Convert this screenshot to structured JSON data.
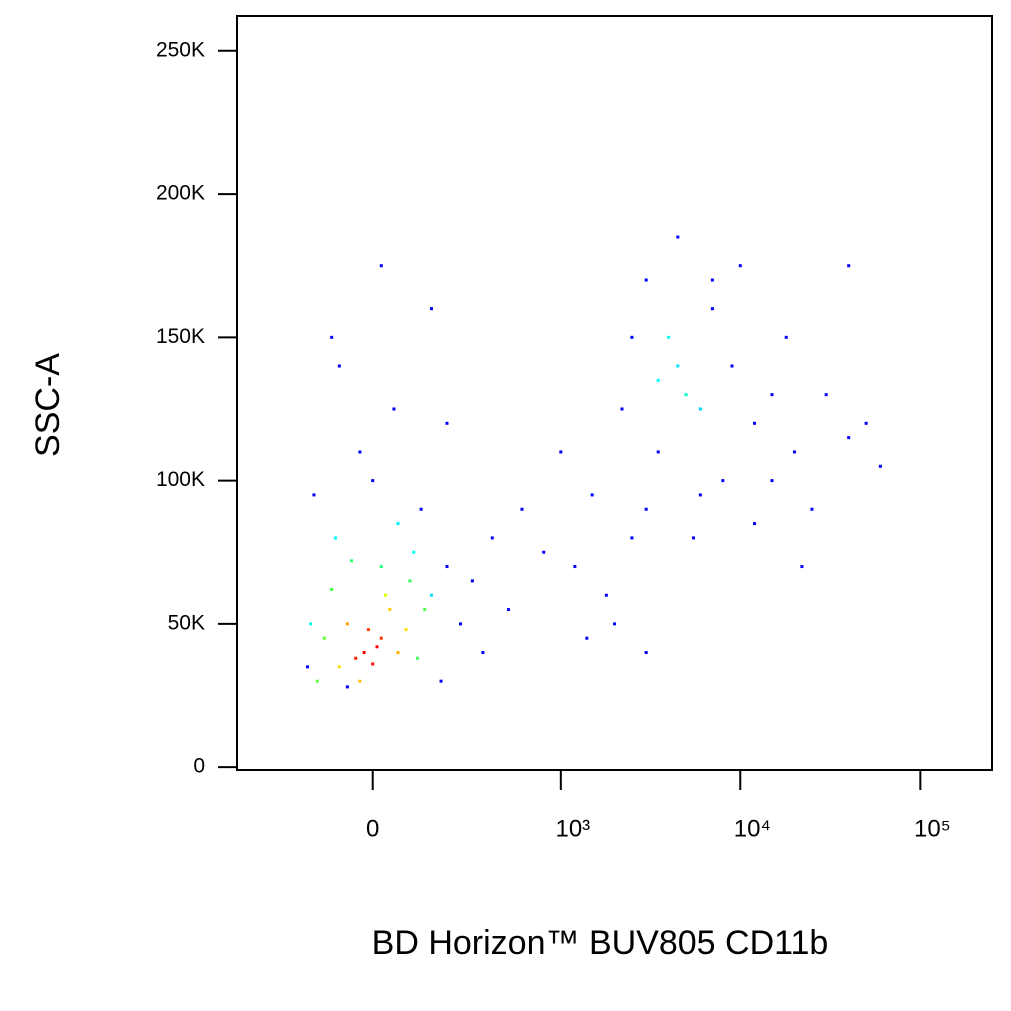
{
  "chart_data": {
    "type": "scatter",
    "x_label": "BD Horizon™ BUV805 CD11b",
    "y_label": "SSC-A",
    "xscale": "biexponential",
    "xlim": [
      -500,
      250000
    ],
    "xticks": [
      0,
      {
        "value": 1000,
        "label": "10³"
      },
      {
        "value": 10000,
        "label": "10⁴"
      },
      {
        "value": 100000,
        "label": "10⁵"
      }
    ],
    "ylim": [
      -1000,
      262144
    ],
    "yticks": [
      0,
      {
        "value": 50000,
        "label": "50K"
      },
      {
        "value": 100000,
        "label": "100K"
      },
      {
        "value": 150000,
        "label": "150K"
      },
      {
        "value": 200000,
        "label": "200K"
      },
      {
        "value": 250000,
        "label": "250K"
      }
    ],
    "x": [
      -20,
      10,
      -40,
      20,
      0,
      -10,
      -60,
      40,
      60,
      -80,
      30,
      -30,
      80,
      -100,
      90,
      -120,
      110,
      20,
      -50,
      130,
      -140,
      -90,
      60,
      150,
      -160,
      100,
      -150,
      0,
      120,
      200,
      -170,
      250,
      300,
      -30,
      50,
      -80,
      150,
      400,
      600,
      800,
      350,
      500,
      -100,
      20,
      200,
      -60,
      180,
      1200,
      1500,
      1800,
      2000,
      2500,
      3000,
      1000,
      1400,
      4500,
      5000,
      4000,
      6000,
      3500,
      2500,
      3000,
      4500,
      7000,
      9000,
      12000,
      15000,
      20000,
      25000,
      30000,
      40000,
      8000,
      6000,
      3500,
      2200,
      10000,
      18000,
      50000,
      5500,
      12000,
      3000,
      7000,
      15000,
      40000,
      60000,
      22000
    ],
    "y": [
      40000,
      42000,
      38000,
      45000,
      36000,
      48000,
      50000,
      55000,
      40000,
      35000,
      60000,
      30000,
      48000,
      62000,
      65000,
      45000,
      38000,
      70000,
      72000,
      55000,
      30000,
      80000,
      85000,
      60000,
      50000,
      75000,
      95000,
      100000,
      90000,
      70000,
      35000,
      50000,
      65000,
      110000,
      125000,
      140000,
      160000,
      80000,
      90000,
      75000,
      40000,
      55000,
      150000,
      175000,
      120000,
      28000,
      30000,
      70000,
      95000,
      60000,
      50000,
      80000,
      40000,
      110000,
      45000,
      140000,
      130000,
      150000,
      125000,
      135000,
      150000,
      170000,
      185000,
      160000,
      140000,
      120000,
      100000,
      110000,
      90000,
      130000,
      115000,
      100000,
      95000,
      110000,
      125000,
      175000,
      150000,
      120000,
      80000,
      85000,
      90000,
      170000,
      130000,
      175000,
      105000,
      70000
    ],
    "colors": [
      "#ff0000",
      "#ff0000",
      "#ff2000",
      "#ff3000",
      "#ff1000",
      "#ff4000",
      "#ffa000",
      "#ffd000",
      "#ffb000",
      "#ffe000",
      "#e0ff00",
      "#ffc000",
      "#ffe000",
      "#40ff40",
      "#30ff60",
      "#60ff30",
      "#40ff60",
      "#20ff80",
      "#30ff70",
      "#50ff50",
      "#60ff40",
      "#00ffff",
      "#00f0ff",
      "#00e0ff",
      "#00ffee",
      "#00ffff",
      "#0000ff",
      "#0000ff",
      "#0000ff",
      "#0000ff",
      "#0000ff",
      "#0000ff",
      "#0000ff",
      "#0000ff",
      "#0000ff",
      "#0000ff",
      "#0000ff",
      "#0000ff",
      "#0000ff",
      "#0000ff",
      "#0000ff",
      "#0000ff",
      "#0000ff",
      "#0000ff",
      "#0000ff",
      "#0000ff",
      "#0000ff",
      "#0000ff",
      "#0000ff",
      "#0000ff",
      "#0000ff",
      "#0000ff",
      "#0000ff",
      "#0000ff",
      "#0000ff",
      "#00e0ff",
      "#00ffcc",
      "#00ffee",
      "#00d0ff",
      "#00ffff",
      "#0000ff",
      "#0000ff",
      "#0000ff",
      "#0000ff",
      "#0000ff",
      "#0000ff",
      "#0000ff",
      "#0000ff",
      "#0000ff",
      "#0000ff",
      "#0000ff",
      "#0000ff",
      "#0000ff",
      "#0000ff",
      "#0000ff",
      "#0000ff",
      "#0000ff",
      "#0000ff",
      "#0000ff",
      "#0000ff",
      "#0000ff",
      "#0000ff",
      "#0000ff",
      "#0000ff",
      "#0000ff",
      "#0000ff"
    ]
  }
}
